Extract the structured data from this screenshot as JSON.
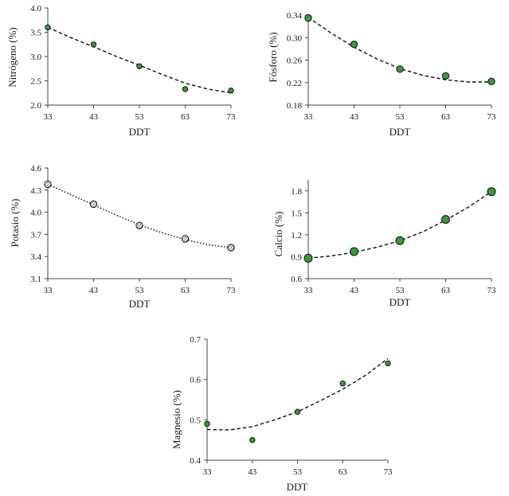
{
  "chart_data": [
    {
      "type": "scatter",
      "ylabel": "Nitrógeno (%)",
      "xlabel": "DDT",
      "xlim": [
        33,
        73
      ],
      "ylim": [
        2.0,
        4.0
      ],
      "xticks": [
        "33",
        "43",
        "53",
        "63",
        "73"
      ],
      "yticks": [
        "2.0",
        "2.5",
        "3.0",
        "3.5",
        "4.0"
      ],
      "series": [
        {
          "x": [
            33,
            43,
            53,
            63,
            73
          ],
          "y": [
            3.6,
            3.25,
            2.8,
            2.33,
            2.3
          ]
        }
      ],
      "trendline": {
        "style": "dashed",
        "x": [
          33,
          38,
          43,
          48,
          53,
          58,
          63,
          68,
          73
        ],
        "y": [
          3.6,
          3.39,
          3.2,
          3.0,
          2.82,
          2.63,
          2.45,
          2.33,
          2.25
        ]
      },
      "marker": {
        "color": "#3a9a3a",
        "size": "small"
      }
    },
    {
      "type": "scatter",
      "ylabel": "Fósforo (%)",
      "xlabel": "DDT",
      "xlim": [
        33,
        73
      ],
      "ylim": [
        0.18,
        0.34
      ],
      "xticks": [
        "33",
        "43",
        "53",
        "63",
        "73"
      ],
      "yticks": [
        "0.18",
        "0.22",
        "0.26",
        "0.30",
        "0.34"
      ],
      "series": [
        {
          "x": [
            33,
            43,
            53,
            63,
            73
          ],
          "y": [
            0.335,
            0.288,
            0.244,
            0.232,
            0.222
          ]
        }
      ],
      "trendline": {
        "style": "dashed",
        "x": [
          33,
          38,
          43,
          48,
          53,
          58,
          63,
          68,
          73
        ],
        "y": [
          0.336,
          0.308,
          0.283,
          0.262,
          0.245,
          0.233,
          0.225,
          0.221,
          0.221
        ]
      },
      "marker": {
        "color": "#3a9a3a",
        "size": "medium"
      }
    },
    {
      "type": "scatter",
      "ylabel": "Potasio (%)",
      "xlabel": "DDT",
      "xlim": [
        33,
        73
      ],
      "ylim": [
        3.1,
        4.6
      ],
      "xticks": [
        "33",
        "43",
        "53",
        "63",
        "73"
      ],
      "yticks": [
        "3.1",
        "3.4",
        "3.7",
        "4.0",
        "4.3",
        "4.6"
      ],
      "series": [
        {
          "x": [
            33,
            43,
            53,
            63,
            73
          ],
          "y": [
            4.38,
            4.11,
            3.82,
            3.64,
            3.52
          ]
        }
      ],
      "trendline": {
        "style": "dotted",
        "x": [
          33,
          38,
          43,
          48,
          53,
          58,
          63,
          68,
          73
        ],
        "y": [
          4.38,
          4.24,
          4.1,
          3.96,
          3.83,
          3.72,
          3.63,
          3.56,
          3.52
        ]
      },
      "marker": {
        "color": "#ffffff",
        "size": "medium",
        "hatched": true
      }
    },
    {
      "type": "scatter",
      "ylabel": "Calcio (%)",
      "xlabel": "DDT",
      "xlim": [
        33,
        73
      ],
      "ylim": [
        0.6,
        1.95
      ],
      "xticks": [
        "33",
        "43",
        "53",
        "63",
        "73"
      ],
      "yticks": [
        "0.6",
        "0.9",
        "1.2",
        "1.5",
        "1.8"
      ],
      "series": [
        {
          "x": [
            33,
            43,
            53,
            63,
            73
          ],
          "y": [
            0.88,
            0.97,
            1.12,
            1.41,
            1.79
          ]
        }
      ],
      "trendline": {
        "style": "dashed",
        "x": [
          33,
          38,
          43,
          48,
          53,
          58,
          63,
          68,
          73
        ],
        "y": [
          0.88,
          0.91,
          0.96,
          1.03,
          1.12,
          1.24,
          1.4,
          1.58,
          1.79
        ]
      },
      "marker": {
        "color": "#3a9a3a",
        "size": "large"
      }
    },
    {
      "type": "scatter",
      "ylabel": "Magnesio (%)",
      "xlabel": "DDT",
      "xlim": [
        33,
        73
      ],
      "ylim": [
        0.4,
        0.7
      ],
      "xticks": [
        "33",
        "43",
        "53",
        "63",
        "73"
      ],
      "yticks": [
        "0.4",
        "0.5",
        "0.6",
        "0.7"
      ],
      "series": [
        {
          "x": [
            33,
            43,
            53,
            63,
            73
          ],
          "y": [
            0.49,
            0.45,
            0.52,
            0.59,
            0.64
          ]
        }
      ],
      "trendline": {
        "style": "dashed",
        "x": [
          33,
          38,
          43,
          48,
          53,
          58,
          63,
          68,
          73
        ],
        "y": [
          0.476,
          0.475,
          0.483,
          0.5,
          0.52,
          0.547,
          0.576,
          0.61,
          0.652
        ]
      },
      "marker": {
        "color": "#3a9a3a",
        "size": "small"
      }
    }
  ]
}
